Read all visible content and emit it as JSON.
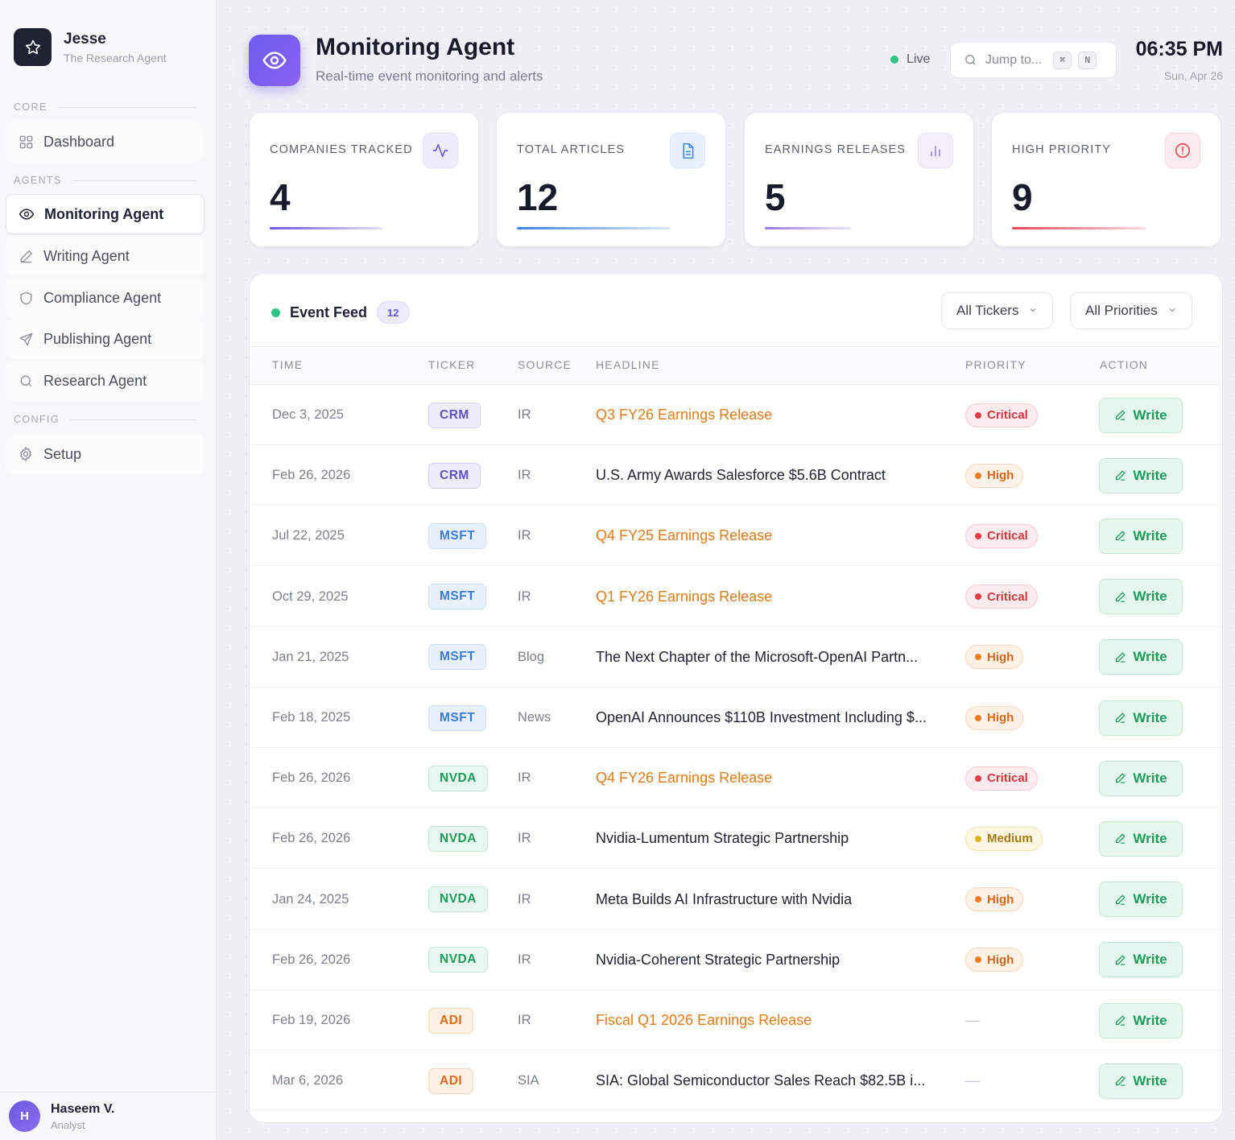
{
  "brand": {
    "name": "Jesse",
    "subtitle": "The Research Agent"
  },
  "nav": {
    "core_label": "CORE",
    "agents_label": "AGENTS",
    "config_label": "CONFIG",
    "dashboard": "Dashboard",
    "monitoring": "Monitoring Agent",
    "writing": "Writing Agent",
    "compliance": "Compliance Agent",
    "publishing": "Publishing Agent",
    "research": "Research Agent",
    "setup": "Setup"
  },
  "user": {
    "initial": "H",
    "name": "Haseem V.",
    "role": "Analyst"
  },
  "header": {
    "title": "Monitoring Agent",
    "subtitle": "Real-time event monitoring and alerts",
    "live": "Live",
    "search_placeholder": "Jump to...",
    "kbd1": "⌘",
    "kbd2": "N",
    "time": "06:35 PM",
    "date": "Sun, Apr 26"
  },
  "stats": [
    {
      "label": "COMPANIES TRACKED",
      "value": "4",
      "icon": "activity-icon",
      "color": "#6d5ae6",
      "bar_fraction": 0.54
    },
    {
      "label": "TOTAL ARTICLES",
      "value": "12",
      "icon": "document-icon",
      "color": "#3f86e6",
      "bar_fraction": 0.73
    },
    {
      "label": "EARNINGS RELEASES",
      "value": "5",
      "icon": "bar-chart-icon",
      "color": "#9a7ae8",
      "bar_fraction": 0.41
    },
    {
      "label": "HIGH PRIORITY",
      "value": "9",
      "icon": "alert-icon",
      "color": "#e8475a",
      "bar_fraction": 0.64
    }
  ],
  "feed": {
    "title": "Event Feed",
    "count": "12",
    "filter_tickers": "All Tickers",
    "filter_priorities": "All Priorities",
    "columns": {
      "time": "TIME",
      "ticker": "TICKER",
      "source": "SOURCE",
      "headline": "HEADLINE",
      "priority": "PRIORITY",
      "action": "ACTION"
    },
    "action_label": "Write",
    "rows": [
      {
        "time": "Dec 3, 2025",
        "ticker": "CRM",
        "source": "IR",
        "headline": "Q3 FY26 Earnings Release",
        "earnings": true,
        "priority": "Critical"
      },
      {
        "time": "Feb 26, 2026",
        "ticker": "CRM",
        "source": "IR",
        "headline": "U.S. Army Awards Salesforce $5.6B Contract",
        "earnings": false,
        "priority": "High"
      },
      {
        "time": "Jul 22, 2025",
        "ticker": "MSFT",
        "source": "IR",
        "headline": "Q4 FY25 Earnings Release",
        "earnings": true,
        "priority": "Critical"
      },
      {
        "time": "Oct 29, 2025",
        "ticker": "MSFT",
        "source": "IR",
        "headline": "Q1 FY26 Earnings Release",
        "earnings": true,
        "priority": "Critical"
      },
      {
        "time": "Jan 21, 2025",
        "ticker": "MSFT",
        "source": "Blog",
        "headline": "The Next Chapter of the Microsoft-OpenAI Partn...",
        "earnings": false,
        "priority": "High"
      },
      {
        "time": "Feb 18, 2025",
        "ticker": "MSFT",
        "source": "News",
        "headline": "OpenAI Announces $110B Investment Including $...",
        "earnings": false,
        "priority": "High"
      },
      {
        "time": "Feb 26, 2026",
        "ticker": "NVDA",
        "source": "IR",
        "headline": "Q4 FY26 Earnings Release",
        "earnings": true,
        "priority": "Critical"
      },
      {
        "time": "Feb 26, 2026",
        "ticker": "NVDA",
        "source": "IR",
        "headline": "Nvidia-Lumentum Strategic Partnership",
        "earnings": false,
        "priority": "Medium"
      },
      {
        "time": "Jan 24, 2025",
        "ticker": "NVDA",
        "source": "IR",
        "headline": "Meta Builds AI Infrastructure with Nvidia",
        "earnings": false,
        "priority": "High"
      },
      {
        "time": "Feb 26, 2026",
        "ticker": "NVDA",
        "source": "IR",
        "headline": "Nvidia-Coherent Strategic Partnership",
        "earnings": false,
        "priority": "High"
      },
      {
        "time": "Feb 19, 2026",
        "ticker": "ADI",
        "source": "IR",
        "headline": "Fiscal Q1 2026 Earnings Release",
        "earnings": true,
        "priority": "—"
      },
      {
        "time": "Mar 6, 2026",
        "ticker": "ADI",
        "source": "SIA",
        "headline": "SIA: Global Semiconductor Sales Reach $82.5B i...",
        "earnings": false,
        "priority": "—"
      }
    ]
  },
  "colors": {
    "accent": "#6b5cf0",
    "live": "#2fc487",
    "earnings_headline": "#e07b17",
    "write_green": "#1d9a5e"
  }
}
